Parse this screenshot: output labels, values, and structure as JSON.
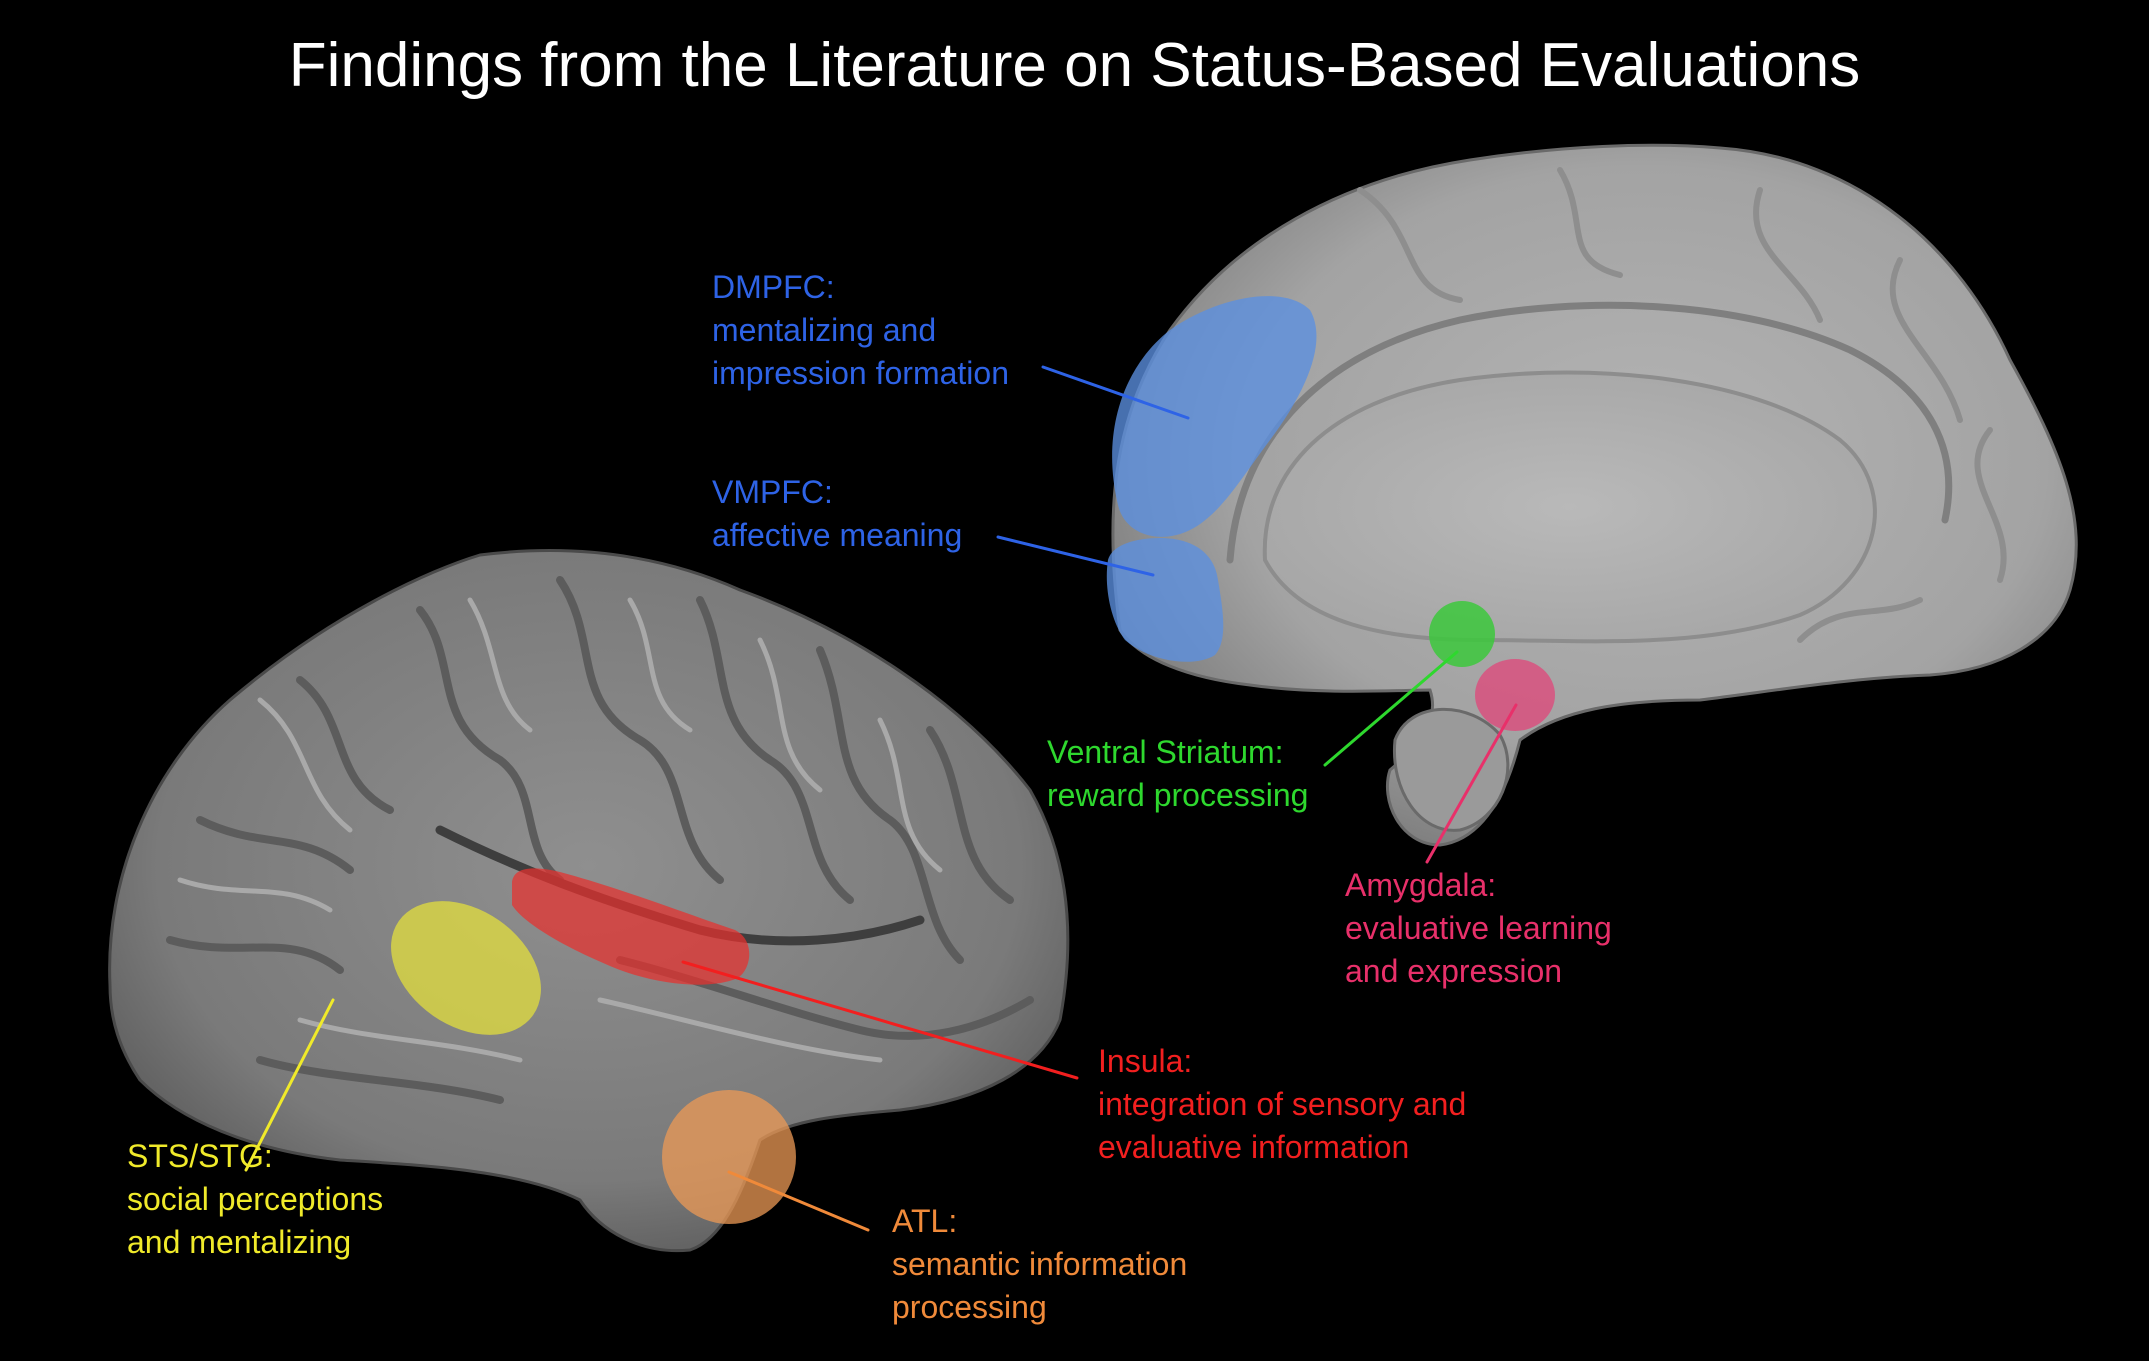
{
  "title": "Findings from the Literature on Status-Based Evaluations",
  "colors": {
    "background": "#000000",
    "brain_surface": "#8c8c8c",
    "blue": "#5b8fe0",
    "green": "#3cc83c",
    "pink": "#e0457a",
    "red": "#e8302e",
    "yellow": "#e6e23a",
    "orange": "#ec9a55"
  },
  "regions": {
    "dmpfc": {
      "name": "DMPFC:",
      "lines": [
        "mentalizing and",
        "impression formation"
      ],
      "color": "#2e63e6"
    },
    "vmpfc": {
      "name": "VMPFC:",
      "lines": [
        "affective meaning"
      ],
      "color": "#2e63e6"
    },
    "ventral_striatum": {
      "name": "Ventral Striatum:",
      "lines": [
        "reward processing"
      ],
      "color": "#2ed82e"
    },
    "amygdala": {
      "name": "Amygdala:",
      "lines": [
        "evaluative learning",
        "and expression"
      ],
      "color": "#e8306a"
    },
    "insula": {
      "name": "Insula:",
      "lines": [
        "integration of sensory and",
        "evaluative information"
      ],
      "color": "#f21f1f"
    },
    "sts_stg": {
      "name": "STS/STG:",
      "lines": [
        "social perceptions",
        "and mentalizing"
      ],
      "color": "#f0ea2a"
    },
    "atl": {
      "name": "ATL:",
      "lines": [
        "semantic information",
        "processing"
      ],
      "color": "#f08a3a"
    }
  }
}
